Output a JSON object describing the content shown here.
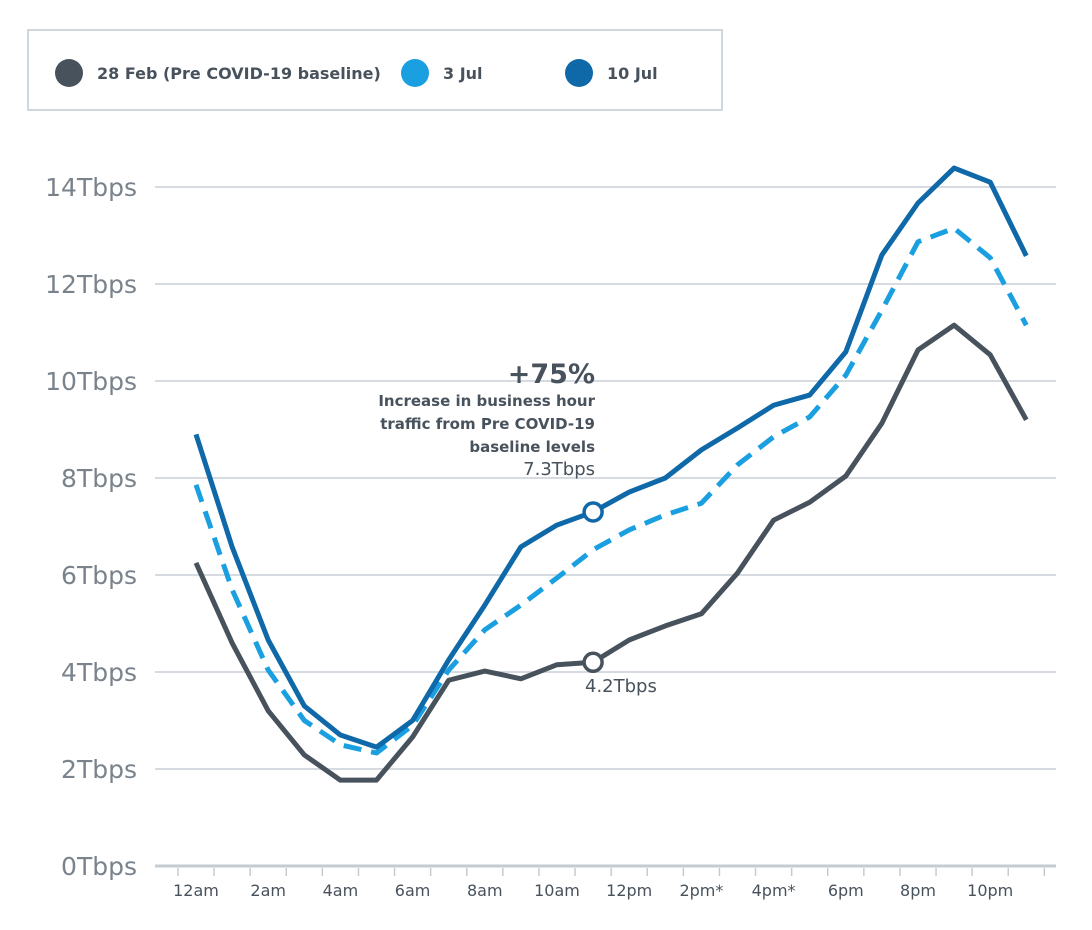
{
  "chart_data": {
    "type": "line",
    "title": "",
    "xlabel": "",
    "ylabel": "",
    "x": [
      "12am",
      "1am",
      "2am",
      "3am",
      "4am",
      "5am",
      "6am",
      "7am",
      "8am",
      "9am",
      "10am",
      "11am",
      "12pm",
      "1pm",
      "2pm*",
      "3pm",
      "4pm*",
      "5pm",
      "6pm",
      "7pm",
      "8pm",
      "9pm",
      "10pm",
      "11pm"
    ],
    "x_tick_labels": [
      "12am",
      "2am",
      "4am",
      "6am",
      "8am",
      "10am",
      "12pm",
      "2pm*",
      "4pm*",
      "6pm",
      "8pm",
      "10pm"
    ],
    "y_tick_labels": [
      "0Tbps",
      "2Tbps",
      "4Tbps",
      "6Tbps",
      "8Tbps",
      "10Tbps",
      "12Tbps",
      "14Tbps"
    ],
    "ylim": [
      0,
      14
    ],
    "grid": true,
    "legend_placement": "top",
    "series": [
      {
        "name": "28 Feb (Pre COVID-19 baseline)",
        "color": "#48525c",
        "style": "solid",
        "values": [
          6.25,
          4.6,
          3.2,
          2.29,
          1.77,
          1.77,
          2.66,
          3.83,
          4.02,
          3.86,
          4.15,
          4.2,
          4.66,
          4.95,
          5.2,
          6.04,
          7.13,
          7.5,
          8.04,
          9.13,
          10.64,
          11.15,
          10.54,
          9.2
        ]
      },
      {
        "name": "3 Jul",
        "color": "#1a9fe0",
        "style": "dashed",
        "values": [
          7.86,
          5.7,
          4.04,
          3.0,
          2.5,
          2.33,
          2.9,
          4.04,
          4.87,
          5.38,
          5.94,
          6.52,
          6.93,
          7.24,
          7.48,
          8.27,
          8.85,
          9.26,
          10.12,
          11.46,
          12.87,
          13.15,
          12.54,
          11.15
        ]
      },
      {
        "name": "10 Jul",
        "color": "#0f68a8",
        "style": "solid",
        "values": [
          8.9,
          6.58,
          4.66,
          3.3,
          2.7,
          2.45,
          3.0,
          4.25,
          5.38,
          6.58,
          7.03,
          7.3,
          7.71,
          8.0,
          8.58,
          9.03,
          9.5,
          9.71,
          10.6,
          12.6,
          13.67,
          14.39,
          14.1,
          12.58
        ]
      }
    ],
    "annotations": {
      "headline": "+75%",
      "description": [
        "Increase in business hour",
        "traffic from Pre COVID-19",
        "baseline levels"
      ],
      "high_label": "7.3Tbps",
      "low_label": "4.2Tbps",
      "marker_x": "11am"
    }
  }
}
